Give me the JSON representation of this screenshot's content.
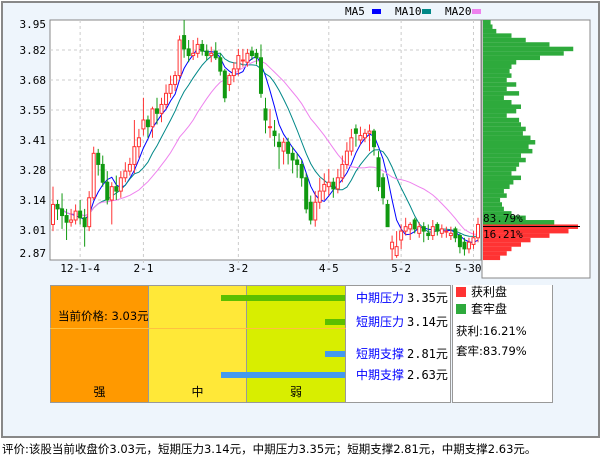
{
  "legend": {
    "ma5": "MA5",
    "ma10": "MA10",
    "ma20": "MA20"
  },
  "colors": {
    "up": "#ff3333",
    "down": "#119911",
    "ma5": "#0000ff",
    "ma10": "#008888",
    "ma20": "#ee82ee",
    "profit": "#ff3333",
    "trapped": "#2eaa3c",
    "strong": "#ff9900",
    "mid": "#ffe838",
    "weak": "#d8ee00",
    "resist": "#5cbf00",
    "support": "#4499ee"
  },
  "chart_data": {
    "type": "candlestick",
    "ylim": [
      2.87,
      3.95
    ],
    "y_ticks": [
      "3.95",
      "3.82",
      "3.68",
      "3.55",
      "3.41",
      "3.28",
      "3.14",
      "3.01",
      "2.87"
    ],
    "x_ticks": [
      {
        "label": "12-1-4",
        "index": 6
      },
      {
        "label": "2-1",
        "index": 20
      },
      {
        "label": "3-2",
        "index": 41
      },
      {
        "label": "4-5",
        "index": 61
      },
      {
        "label": "5-2",
        "index": 77
      },
      {
        "label": "5-30",
        "index": 93
      }
    ],
    "grid": true,
    "legend_position": "top-right",
    "ohlc": [
      [
        3.03,
        3.2,
        3.0,
        3.12
      ],
      [
        3.12,
        3.14,
        3.05,
        3.1
      ],
      [
        3.1,
        3.17,
        3.01,
        3.07
      ],
      [
        3.07,
        3.1,
        2.96,
        3.04
      ],
      [
        3.04,
        3.1,
        3.02,
        3.05
      ],
      [
        3.05,
        3.12,
        3.03,
        3.09
      ],
      [
        3.09,
        3.14,
        3.03,
        3.06
      ],
      [
        3.06,
        3.1,
        2.93,
        3.02
      ],
      [
        3.02,
        3.18,
        3.0,
        3.15
      ],
      [
        3.15,
        3.38,
        3.14,
        3.35
      ],
      [
        3.35,
        3.37,
        3.25,
        3.3
      ],
      [
        3.3,
        3.34,
        3.2,
        3.22
      ],
      [
        3.22,
        3.27,
        3.12,
        3.14
      ],
      [
        3.14,
        3.22,
        3.03,
        3.2
      ],
      [
        3.2,
        3.25,
        3.14,
        3.18
      ],
      [
        3.18,
        3.27,
        3.15,
        3.24
      ],
      [
        3.24,
        3.31,
        3.22,
        3.27
      ],
      [
        3.27,
        3.33,
        3.25,
        3.3
      ],
      [
        3.3,
        3.5,
        3.26,
        3.38
      ],
      [
        3.38,
        3.46,
        3.33,
        3.42
      ],
      [
        3.46,
        3.6,
        3.43,
        3.5
      ],
      [
        3.5,
        3.52,
        3.42,
        3.47
      ],
      [
        3.47,
        3.56,
        3.42,
        3.55
      ],
      [
        3.55,
        3.6,
        3.48,
        3.53
      ],
      [
        3.53,
        3.6,
        3.49,
        3.57
      ],
      [
        3.57,
        3.66,
        3.55,
        3.62
      ],
      [
        3.62,
        3.7,
        3.6,
        3.66
      ],
      [
        3.66,
        3.72,
        3.63,
        3.7
      ],
      [
        3.7,
        3.88,
        3.68,
        3.86
      ],
      [
        3.88,
        3.95,
        3.78,
        3.82
      ],
      [
        3.82,
        3.86,
        3.76,
        3.79
      ],
      [
        3.79,
        3.86,
        3.77,
        3.8
      ],
      [
        3.8,
        3.87,
        3.78,
        3.84
      ],
      [
        3.84,
        3.86,
        3.79,
        3.81
      ],
      [
        3.81,
        3.84,
        3.77,
        3.79
      ],
      [
        3.79,
        3.83,
        3.76,
        3.8
      ],
      [
        3.81,
        3.85,
        3.77,
        3.78
      ],
      [
        3.78,
        3.8,
        3.7,
        3.72
      ],
      [
        3.72,
        3.73,
        3.58,
        3.6
      ],
      [
        3.66,
        3.71,
        3.63,
        3.7
      ],
      [
        3.7,
        3.76,
        3.67,
        3.73
      ],
      [
        3.73,
        3.82,
        3.7,
        3.79
      ],
      [
        3.77,
        3.82,
        3.74,
        3.77
      ],
      [
        3.76,
        3.82,
        3.74,
        3.8
      ],
      [
        3.81,
        3.83,
        3.77,
        3.79
      ],
      [
        3.8,
        3.82,
        3.75,
        3.78
      ],
      [
        3.78,
        3.84,
        3.6,
        3.62
      ],
      [
        3.55,
        3.6,
        3.44,
        3.5
      ],
      [
        3.47,
        3.55,
        3.42,
        3.47
      ],
      [
        3.45,
        3.5,
        3.38,
        3.43
      ],
      [
        3.4,
        3.44,
        3.28,
        3.38
      ],
      [
        3.36,
        3.42,
        3.3,
        3.4
      ],
      [
        3.4,
        3.42,
        3.3,
        3.35
      ],
      [
        3.35,
        3.38,
        3.26,
        3.32
      ],
      [
        3.32,
        3.35,
        3.24,
        3.3
      ],
      [
        3.3,
        3.32,
        3.2,
        3.24
      ],
      [
        3.24,
        3.26,
        3.08,
        3.1
      ],
      [
        3.13,
        3.16,
        3.03,
        3.05
      ],
      [
        3.05,
        3.18,
        3.02,
        3.13
      ],
      [
        3.13,
        3.24,
        3.1,
        3.18
      ],
      [
        3.18,
        3.26,
        3.14,
        3.21
      ],
      [
        3.2,
        3.28,
        3.16,
        3.22
      ],
      [
        3.22,
        3.24,
        3.15,
        3.19
      ],
      [
        3.19,
        3.28,
        3.17,
        3.24
      ],
      [
        3.24,
        3.34,
        3.22,
        3.3
      ],
      [
        3.3,
        3.4,
        3.28,
        3.36
      ],
      [
        3.36,
        3.46,
        3.34,
        3.42
      ],
      [
        3.46,
        3.48,
        3.38,
        3.44
      ],
      [
        3.41,
        3.47,
        3.39,
        3.43
      ],
      [
        3.42,
        3.46,
        3.4,
        3.44
      ],
      [
        3.44,
        3.48,
        3.36,
        3.45
      ],
      [
        3.45,
        3.46,
        3.34,
        3.38
      ],
      [
        3.33,
        3.36,
        3.18,
        3.2
      ],
      [
        3.24,
        3.26,
        3.12,
        3.15
      ],
      [
        3.12,
        3.14,
        3.02,
        3.02
      ],
      [
        2.92,
        2.98,
        2.87,
        2.95
      ],
      [
        2.89,
        3.0,
        2.88,
        2.93
      ],
      [
        2.96,
        3.03,
        2.92,
        3.0
      ],
      [
        3.0,
        3.06,
        2.98,
        3.02
      ],
      [
        3.01,
        3.04,
        2.96,
        3.03
      ],
      [
        3.05,
        3.06,
        2.99,
        3.01
      ],
      [
        2.99,
        3.04,
        2.97,
        3.02
      ],
      [
        3.02,
        3.04,
        2.95,
        3.0
      ],
      [
        2.99,
        3.03,
        2.96,
        2.98
      ],
      [
        2.98,
        3.05,
        2.96,
        3.02
      ],
      [
        3.03,
        3.04,
        2.98,
        3.0
      ],
      [
        2.99,
        3.03,
        2.97,
        3.01
      ],
      [
        3.0,
        3.02,
        2.97,
        3.0
      ],
      [
        2.98,
        3.02,
        2.96,
        2.99
      ],
      [
        3.01,
        3.02,
        2.95,
        2.97
      ],
      [
        2.98,
        2.99,
        2.9,
        2.93
      ],
      [
        2.95,
        2.97,
        2.89,
        2.92
      ],
      [
        2.92,
        2.97,
        2.9,
        2.95
      ],
      [
        2.94,
        3.0,
        2.92,
        2.97
      ],
      [
        2.97,
        3.06,
        2.95,
        3.03
      ]
    ],
    "chip_distribution": {
      "current_price": 3.03,
      "prices": [
        3.94,
        3.92,
        3.9,
        3.88,
        3.86,
        3.84,
        3.82,
        3.8,
        3.78,
        3.76,
        3.74,
        3.72,
        3.7,
        3.68,
        3.66,
        3.64,
        3.62,
        3.6,
        3.58,
        3.56,
        3.54,
        3.52,
        3.5,
        3.48,
        3.46,
        3.44,
        3.42,
        3.4,
        3.38,
        3.36,
        3.34,
        3.32,
        3.3,
        3.28,
        3.26,
        3.24,
        3.22,
        3.2,
        3.18,
        3.16,
        3.14,
        3.12,
        3.1,
        3.08,
        3.06,
        3.04,
        3.02,
        3.0,
        2.98,
        2.96,
        2.94,
        2.92,
        2.9,
        2.88
      ],
      "values": [
        8,
        10,
        14,
        30,
        45,
        70,
        95,
        85,
        60,
        35,
        30,
        28,
        30,
        25,
        35,
        25,
        38,
        22,
        30,
        40,
        35,
        25,
        38,
        40,
        45,
        42,
        50,
        55,
        48,
        52,
        40,
        45,
        38,
        35,
        30,
        40,
        32,
        28,
        22,
        25,
        18,
        20,
        22,
        30,
        45,
        75,
        100,
        90,
        70,
        50,
        40,
        30,
        25,
        18
      ],
      "trapped_label": "83.79%",
      "profit_label": "16.21%"
    }
  },
  "panel": {
    "current_price_label": "当前价格: 3.03元",
    "zones": [
      "强",
      "中",
      "弱"
    ],
    "levels": [
      {
        "name": "中期压力",
        "value": "3.35元",
        "type": "resist",
        "price": 3.35
      },
      {
        "name": "短期压力",
        "value": "3.14元",
        "type": "resist",
        "price": 3.14
      },
      {
        "name": "短期支撑",
        "value": "2.81元",
        "type": "support",
        "price": 2.81
      },
      {
        "name": "中期支撑",
        "value": "2.63元",
        "type": "support",
        "price": 2.63
      }
    ]
  },
  "chip_legend": {
    "profit": "获利盘",
    "trapped": "套牢盘",
    "profit_ratio": "获利:16.21%",
    "trapped_ratio": "套牢:83.79%"
  },
  "summary": "评价:该股当前收盘价3.03元，短期压力3.14元，中期压力3.35元；短期支撑2.81元，中期支撑2.63元。"
}
